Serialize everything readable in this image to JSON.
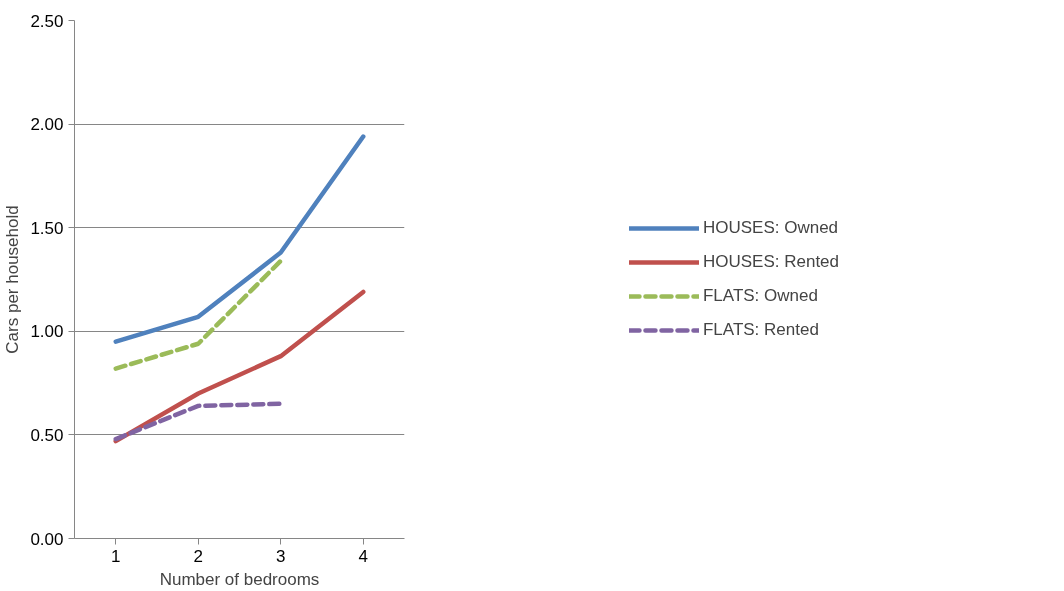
{
  "chart_data": {
    "type": "line",
    "xlabel": "Number of bedrooms",
    "ylabel": "Cars per household",
    "categories": [
      "1",
      "2",
      "3",
      "4"
    ],
    "series": [
      {
        "name": "HOUSES: Owned",
        "color": "#4f81bd",
        "line_style": "solid",
        "values": [
          0.95,
          1.07,
          1.38,
          1.94
        ]
      },
      {
        "name": "HOUSES: Rented",
        "color": "#c0504d",
        "line_style": "solid",
        "values": [
          0.47,
          0.7,
          0.88,
          1.19
        ]
      },
      {
        "name": "FLATS: Owned",
        "color": "#9bbb59",
        "line_style": "dashed",
        "values": [
          0.82,
          0.94,
          1.34,
          null
        ]
      },
      {
        "name": "FLATS: Rented",
        "color": "#8064a2",
        "line_style": "dashed",
        "values": [
          0.48,
          0.64,
          0.65,
          null
        ]
      }
    ],
    "ylim": [
      0,
      2.5
    ],
    "yticks": [
      {
        "value": 0,
        "label": "0.00"
      },
      {
        "value": 0.5,
        "label": "0.50"
      },
      {
        "value": 1,
        "label": "1.00"
      },
      {
        "value": 1.5,
        "label": "1.50"
      },
      {
        "value": 2,
        "label": "2.00"
      },
      {
        "value": 2.5,
        "label": "2.50"
      }
    ],
    "grid": "y",
    "legend": "right",
    "marker": "none"
  }
}
